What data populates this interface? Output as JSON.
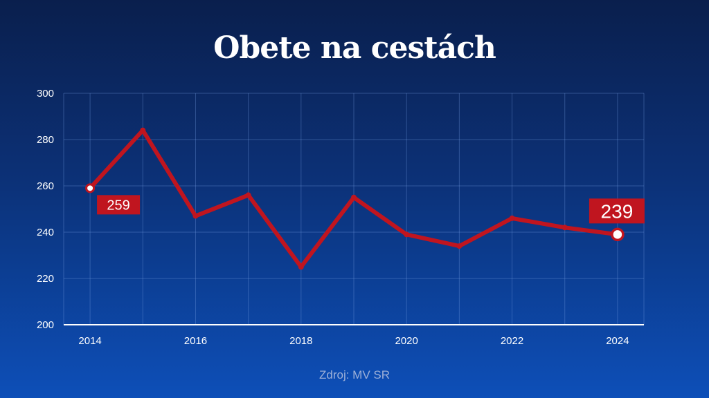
{
  "chart_data": {
    "type": "line",
    "title": "Obete na cestách",
    "source": "Zdroj: MV SR",
    "x": [
      2014,
      2015,
      2016,
      2017,
      2018,
      2019,
      2020,
      2021,
      2022,
      2023,
      2024
    ],
    "x_tick_labels": [
      "2014",
      "2016",
      "2018",
      "2020",
      "2022",
      "2024"
    ],
    "series": [
      {
        "values": [
          259,
          284,
          247,
          256,
          225,
          255,
          239,
          234,
          246,
          242,
          239
        ]
      }
    ],
    "ylim": [
      200,
      300
    ],
    "y_tick_labels": [
      "200",
      "220",
      "240",
      "260",
      "280",
      "300"
    ],
    "data_labels": [
      {
        "year": 2014,
        "text": "259"
      },
      {
        "year": 2024,
        "text": "239"
      }
    ],
    "grid": true,
    "line_color": "#c0151f",
    "label_bg_color": "#c0151f"
  }
}
